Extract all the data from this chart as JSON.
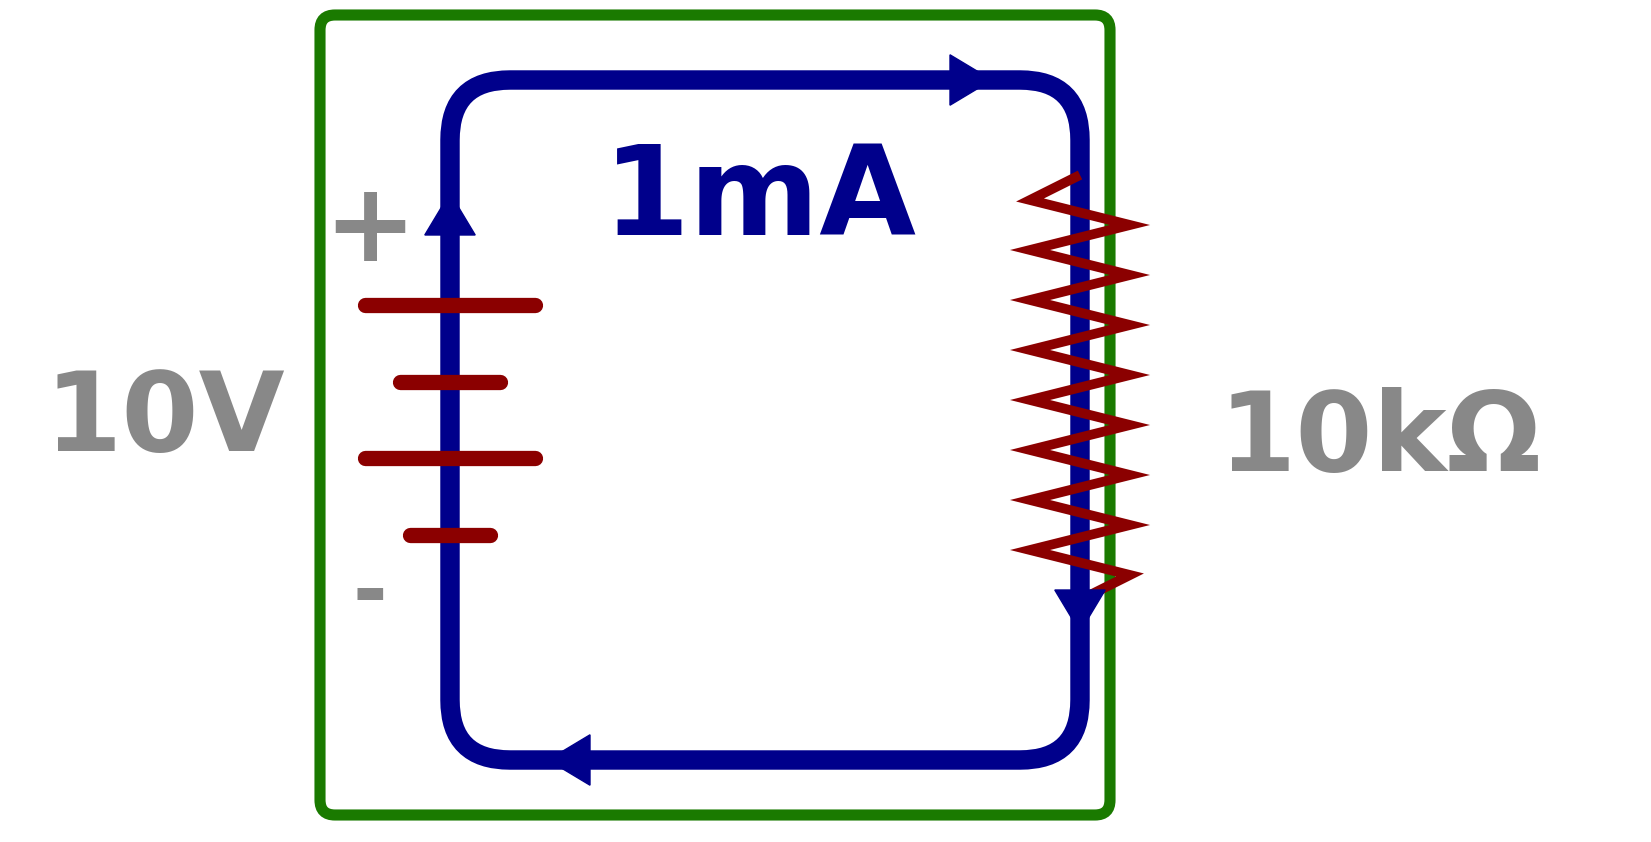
{
  "bg_color": "#ffffff",
  "border_color": "#1a7a00",
  "circuit_color": "#00008B",
  "component_color": "#8B0000",
  "text_color": "#888888",
  "label_color": "#00008B",
  "voltage_label": "10V",
  "current_label": "1mA",
  "resistance_label": "10kΩ",
  "plus_label": "+",
  "minus_label": "-",
  "border_linewidth": 8,
  "circuit_linewidth": 14,
  "component_linewidth": 7,
  "battery_linewidth": 11
}
